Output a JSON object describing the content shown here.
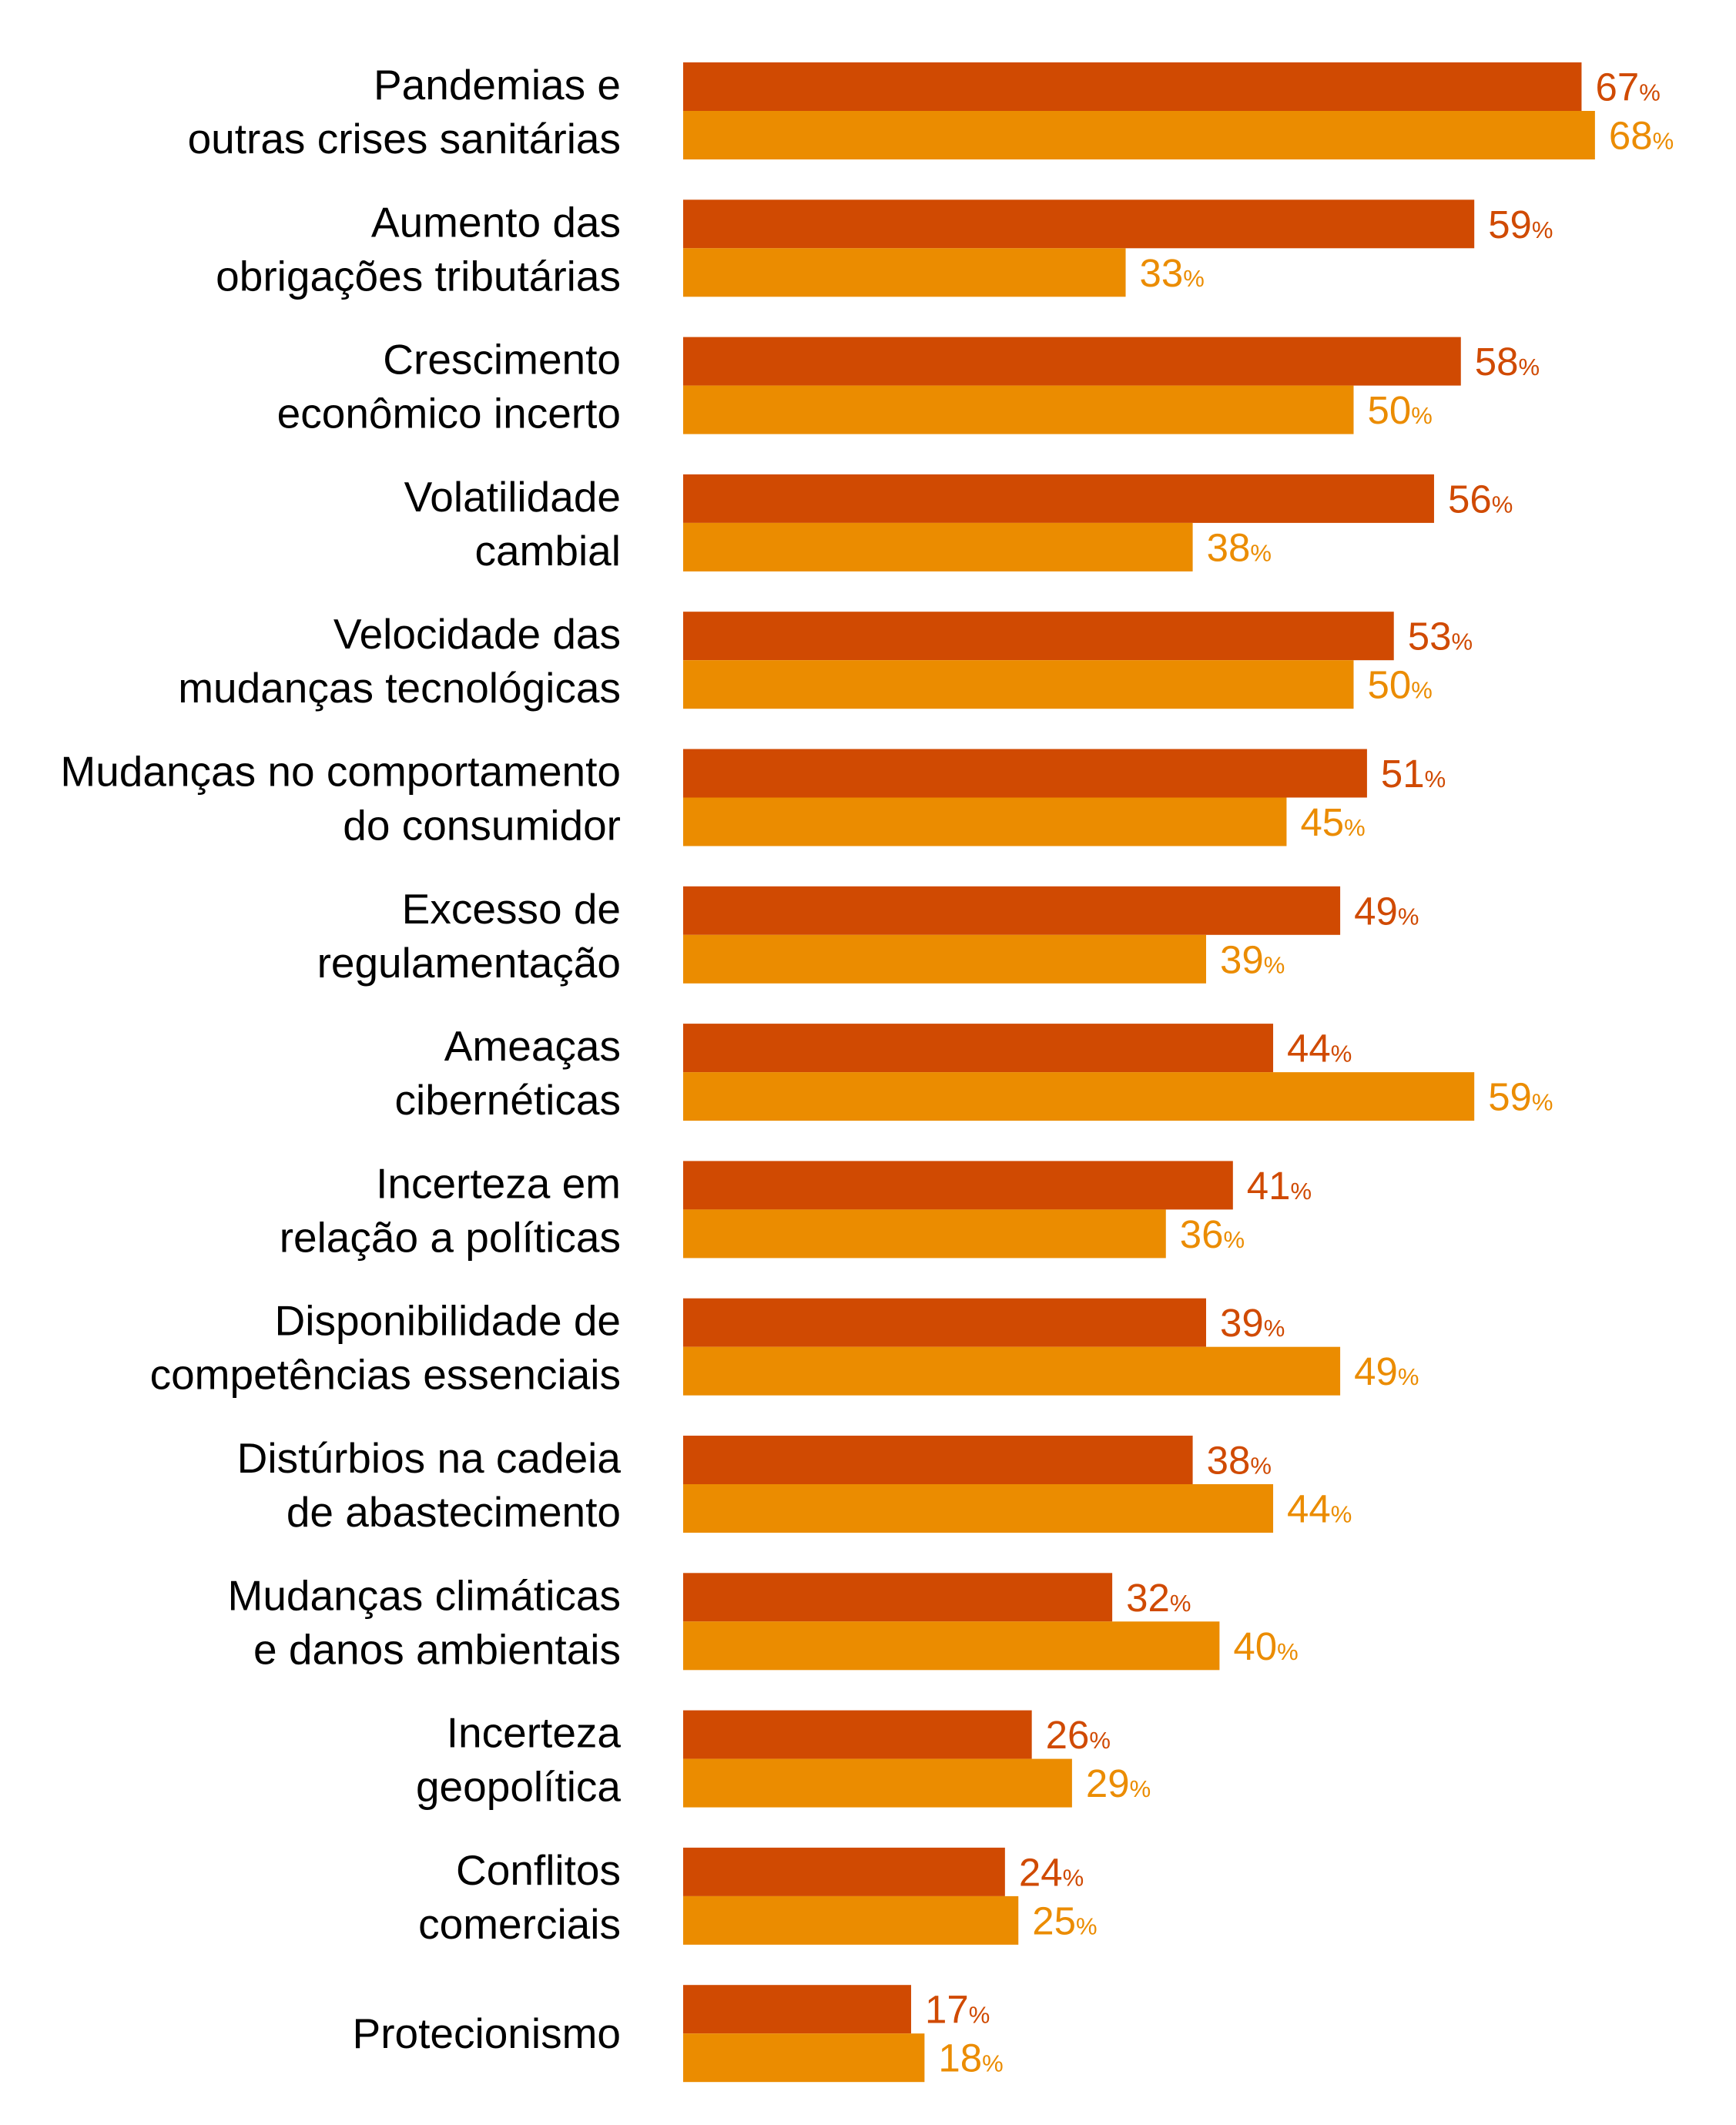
{
  "chart_data": {
    "type": "bar",
    "orientation": "horizontal",
    "categories": [
      [
        "Pandemias e",
        "outras crises sanitárias"
      ],
      [
        "Aumento das",
        "obrigações tributárias"
      ],
      [
        "Crescimento",
        "econômico incerto"
      ],
      [
        "Volatilidade",
        "cambial"
      ],
      [
        "Velocidade das",
        "mudanças tecnológicas"
      ],
      [
        "Mudanças no comportamento",
        "do consumidor"
      ],
      [
        "Excesso de",
        "regulamentação"
      ],
      [
        "Ameaças",
        "cibernéticas"
      ],
      [
        "Incerteza em",
        "relação a políticas"
      ],
      [
        "Disponibilidade de",
        "competências essenciais"
      ],
      [
        "Distúrbios na cadeia",
        "de abastecimento"
      ],
      [
        "Mudanças climáticas",
        "e danos ambientais"
      ],
      [
        "Incerteza",
        "geopolítica"
      ],
      [
        "Conflitos",
        "comerciais"
      ],
      [
        "Protecionismo"
      ]
    ],
    "series": [
      {
        "values": [
          67,
          59,
          58,
          56,
          53,
          51,
          49,
          44,
          41,
          39,
          38,
          32,
          26,
          24,
          17
        ],
        "color": "#d04a02"
      },
      {
        "values": [
          68,
          33,
          50,
          38,
          50,
          45,
          39,
          59,
          36,
          49,
          44,
          40,
          29,
          25,
          18
        ],
        "color": "#eb8c00"
      }
    ],
    "value_suffix": "%",
    "xlim": [
      0,
      68
    ],
    "grid": false,
    "legend": "none",
    "title": "",
    "xlabel": "",
    "ylabel": ""
  }
}
